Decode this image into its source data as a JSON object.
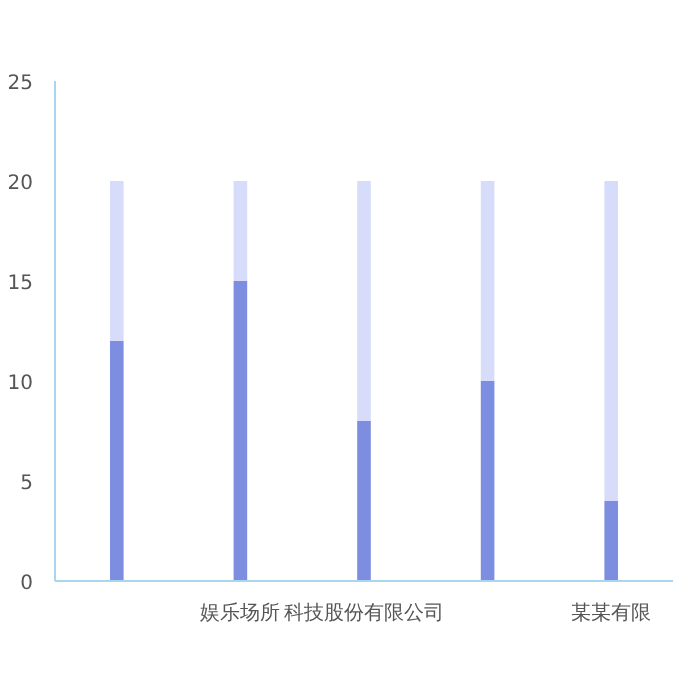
{
  "chart_data": {
    "type": "bar",
    "stacked": true,
    "categories": [
      null,
      "娱乐场所",
      "科技股份有限公司",
      null,
      "某某有限"
    ],
    "series": [
      {
        "color": "#7d8de0",
        "values": [
          12,
          15,
          8,
          10,
          4
        ]
      },
      {
        "color": "#d6dcfa",
        "values": [
          8,
          5,
          12,
          10,
          16
        ]
      }
    ],
    "ylim": [
      0,
      25
    ],
    "yticks": [
      0,
      5,
      10,
      15,
      20,
      25
    ],
    "grid": false
  }
}
